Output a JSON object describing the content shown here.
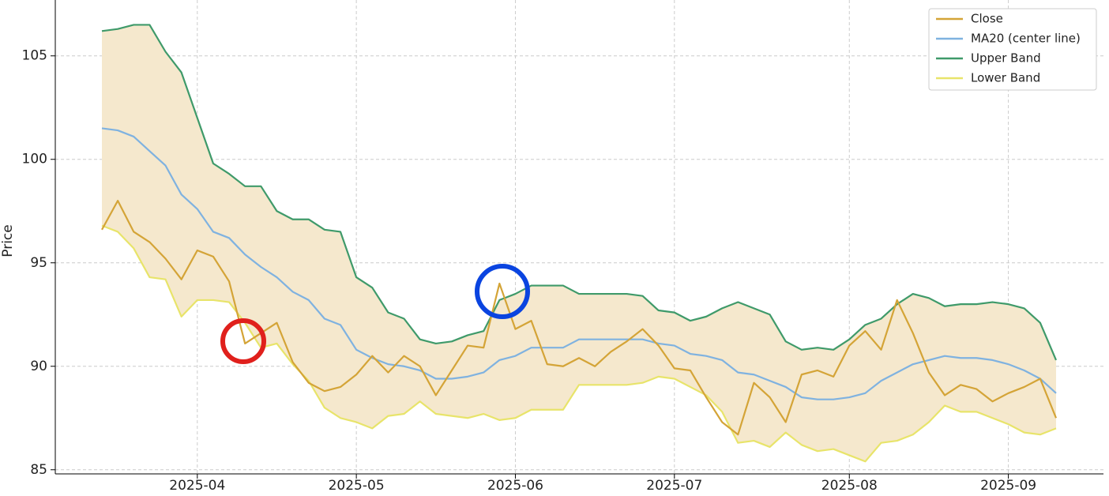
{
  "chart_data": {
    "type": "line",
    "y_label": "Price",
    "categories": [
      null,
      null,
      null,
      null,
      null,
      null,
      "2025-04",
      null,
      null,
      null,
      null,
      null,
      null,
      null,
      null,
      null,
      "2025-05",
      null,
      null,
      null,
      null,
      null,
      null,
      null,
      null,
      null,
      "2025-06",
      null,
      null,
      null,
      null,
      null,
      null,
      null,
      null,
      null,
      "2025-07",
      null,
      null,
      null,
      null,
      null,
      null,
      null,
      null,
      null,
      null,
      "2025-08",
      null,
      null,
      null,
      null,
      null,
      null,
      null,
      null,
      null,
      "2025-09",
      null,
      null,
      null
    ],
    "series": [
      {
        "name": "Close",
        "color": "#d4a437",
        "values": [
          96.6,
          98.0,
          96.5,
          96.0,
          95.2,
          94.2,
          95.6,
          95.3,
          94.1,
          91.1,
          91.6,
          92.1,
          90.2,
          89.2,
          88.8,
          89.0,
          89.6,
          90.5,
          89.7,
          90.5,
          90.0,
          88.6,
          89.8,
          91.0,
          90.9,
          94.0,
          91.8,
          92.2,
          90.1,
          90.0,
          90.4,
          90.0,
          90.7,
          91.2,
          91.8,
          91.0,
          89.9,
          89.8,
          88.5,
          87.3,
          86.7,
          89.2,
          88.5,
          87.3,
          89.6,
          89.8,
          89.5,
          91.0,
          91.7,
          90.8,
          93.2,
          91.6,
          89.7,
          88.6,
          89.1,
          88.9,
          88.3,
          88.7,
          89.0,
          89.4,
          87.5
        ]
      },
      {
        "name": "MA20 (center line)",
        "color": "#7fb2e0",
        "values": [
          101.5,
          101.4,
          101.1,
          100.4,
          99.7,
          98.3,
          97.6,
          96.5,
          96.2,
          95.4,
          94.8,
          94.3,
          93.6,
          93.2,
          92.3,
          92.0,
          90.8,
          90.4,
          90.1,
          90.0,
          89.8,
          89.4,
          89.4,
          89.5,
          89.7,
          90.3,
          90.5,
          90.9,
          90.9,
          90.9,
          91.3,
          91.3,
          91.3,
          91.3,
          91.3,
          91.1,
          91.0,
          90.6,
          90.5,
          90.3,
          89.7,
          89.6,
          89.3,
          89.0,
          88.5,
          88.4,
          88.4,
          88.5,
          88.7,
          89.3,
          89.7,
          90.1,
          90.3,
          90.5,
          90.4,
          90.4,
          90.3,
          90.1,
          89.8,
          89.4,
          88.7
        ]
      },
      {
        "name": "Upper Band",
        "color": "#3f9a6a",
        "values": [
          106.2,
          106.3,
          106.5,
          106.5,
          105.2,
          104.2,
          102.0,
          99.8,
          99.3,
          98.7,
          98.7,
          97.5,
          97.1,
          97.1,
          96.6,
          96.5,
          94.3,
          93.8,
          92.6,
          92.3,
          91.3,
          91.1,
          91.2,
          91.5,
          91.7,
          93.2,
          93.5,
          93.9,
          93.9,
          93.9,
          93.5,
          93.5,
          93.5,
          93.5,
          93.4,
          92.7,
          92.6,
          92.2,
          92.4,
          92.8,
          93.1,
          92.8,
          92.5,
          91.2,
          90.8,
          90.9,
          90.8,
          91.3,
          92.0,
          92.3,
          93.0,
          93.5,
          93.3,
          92.9,
          93.0,
          93.0,
          93.1,
          93.0,
          92.8,
          92.1,
          90.3
        ]
      },
      {
        "name": "Lower Band",
        "color": "#e8e46a",
        "values": [
          96.8,
          96.5,
          95.7,
          94.3,
          94.2,
          92.4,
          93.2,
          93.2,
          93.1,
          92.1,
          90.9,
          91.1,
          90.1,
          89.3,
          88.0,
          87.5,
          87.3,
          87.0,
          87.6,
          87.7,
          88.3,
          87.7,
          87.6,
          87.5,
          87.7,
          87.4,
          87.5,
          87.9,
          87.9,
          87.9,
          89.1,
          89.1,
          89.1,
          89.1,
          89.2,
          89.5,
          89.4,
          89.0,
          88.6,
          87.8,
          86.3,
          86.4,
          86.1,
          86.8,
          86.2,
          85.9,
          86.0,
          85.7,
          85.4,
          86.3,
          86.4,
          86.7,
          87.3,
          88.1,
          87.8,
          87.8,
          87.5,
          87.2,
          86.8,
          86.7,
          87.0
        ]
      }
    ],
    "band_fill": "#f5e8cd",
    "ylim": [
      84.8,
      107.7
    ],
    "yticks": [
      85,
      90,
      95,
      100,
      105
    ],
    "grid": true,
    "legend": "upper right"
  }
}
